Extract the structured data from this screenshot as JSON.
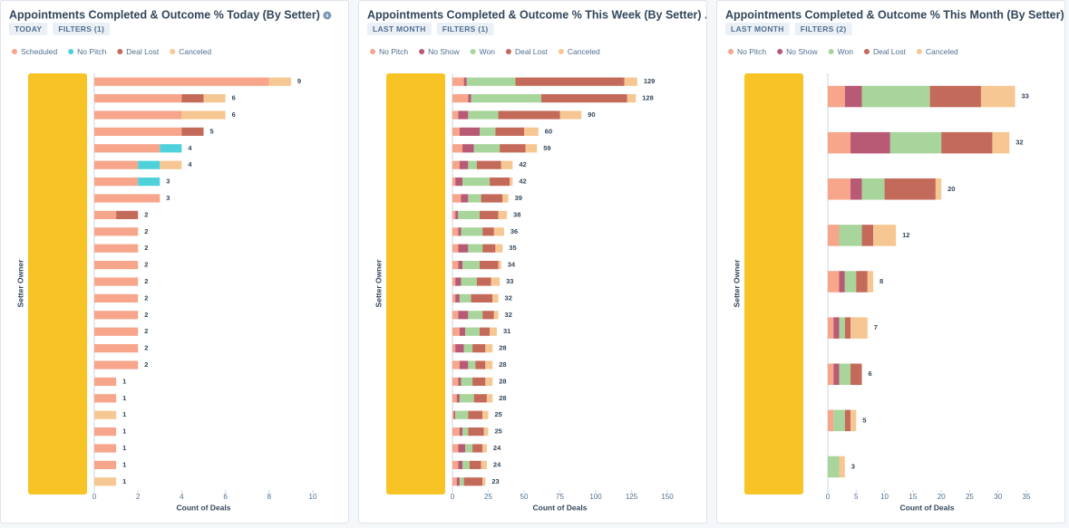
{
  "chart_data": [
    {
      "type": "bar",
      "orientation": "horizontal",
      "stacked": true,
      "title": "Appointments Completed & Outcome % Today (By Setter)",
      "filters": [
        "TODAY",
        "FILTERS (1)"
      ],
      "xlabel": "Count of Deals",
      "ylabel": "Setter Owner",
      "xlim": [
        0,
        10
      ],
      "xticks": [
        0,
        2,
        4,
        6,
        8,
        10
      ],
      "categories": [
        null,
        null,
        null,
        null,
        null,
        null,
        null,
        null,
        null,
        null,
        null,
        null,
        null,
        null,
        null,
        null,
        null,
        null,
        null,
        null,
        null,
        null,
        null,
        null,
        null
      ],
      "totals": [
        9,
        6,
        6,
        5,
        4,
        4,
        3,
        3,
        2,
        2,
        2,
        2,
        2,
        2,
        2,
        2,
        2,
        2,
        1,
        1,
        1,
        1,
        1,
        1,
        1
      ],
      "series": [
        {
          "name": "Scheduled",
          "color": "#f7a58b",
          "values": [
            8,
            4,
            4,
            4,
            3,
            2,
            2,
            3,
            1,
            2,
            2,
            2,
            2,
            2,
            2,
            2,
            2,
            2,
            1,
            1,
            0,
            1,
            1,
            1,
            0
          ]
        },
        {
          "name": "No Pitch",
          "color": "#4fd1db",
          "values": [
            0,
            0,
            0,
            0,
            1,
            1,
            1,
            0,
            0,
            0,
            0,
            0,
            0,
            0,
            0,
            0,
            0,
            0,
            0,
            0,
            0,
            0,
            0,
            0,
            0
          ]
        },
        {
          "name": "Deal Lost",
          "color": "#c46a5b",
          "values": [
            0,
            1,
            0,
            1,
            0,
            0,
            0,
            0,
            1,
            0,
            0,
            0,
            0,
            0,
            0,
            0,
            0,
            0,
            0,
            0,
            0,
            0,
            0,
            0,
            0
          ]
        },
        {
          "name": "Canceled",
          "color": "#f6c792",
          "values": [
            1,
            1,
            2,
            0,
            0,
            1,
            0,
            0,
            0,
            0,
            0,
            0,
            0,
            0,
            0,
            0,
            0,
            0,
            0,
            0,
            1,
            0,
            0,
            0,
            1
          ]
        }
      ]
    },
    {
      "type": "bar",
      "orientation": "horizontal",
      "stacked": true,
      "title": "Appointments Completed & Outcome % This Week (By Setter) ...",
      "filters": [
        "LAST MONTH",
        "FILTERS (1)"
      ],
      "xlabel": "Count of Deals",
      "ylabel": "Setter Owner",
      "xlim": [
        0,
        150
      ],
      "xticks": [
        0,
        25,
        50,
        75,
        100,
        125,
        150
      ],
      "categories": [
        null,
        null,
        null,
        null,
        null,
        null,
        null,
        null,
        null,
        null,
        null,
        null,
        null,
        null,
        null,
        null,
        null,
        null,
        null,
        null,
        null,
        null,
        null,
        null,
        null
      ],
      "totals": [
        129,
        128,
        90,
        60,
        59,
        42,
        42,
        39,
        38,
        36,
        35,
        34,
        33,
        32,
        32,
        31,
        28,
        28,
        28,
        28,
        25,
        25,
        24,
        24,
        23
      ],
      "series": [
        {
          "name": "No Pitch",
          "color": "#f7a58b",
          "values": [
            8,
            11,
            4,
            5,
            7,
            5,
            2,
            6,
            2,
            4,
            4,
            4,
            2,
            2,
            4,
            5,
            2,
            5,
            4,
            3,
            1,
            5,
            4,
            4,
            3
          ]
        },
        {
          "name": "No Show",
          "color": "#b85a76",
          "values": [
            2,
            2,
            7,
            14,
            8,
            6,
            5,
            5,
            2,
            2,
            7,
            3,
            4,
            3,
            7,
            4,
            6,
            6,
            2,
            2,
            1,
            2,
            5,
            3,
            2
          ]
        },
        {
          "name": "Won",
          "color": "#a8d59b",
          "values": [
            34,
            49,
            21,
            11,
            18,
            6,
            19,
            9,
            15,
            15,
            10,
            12,
            11,
            8,
            10,
            10,
            6,
            5,
            8,
            10,
            9,
            4,
            5,
            5,
            3
          ]
        },
        {
          "name": "Deal Lost",
          "color": "#c46a5b",
          "values": [
            76,
            60,
            43,
            20,
            18,
            17,
            14,
            15,
            13,
            8,
            9,
            13,
            10,
            15,
            8,
            7,
            9,
            7,
            9,
            9,
            10,
            11,
            7,
            8,
            13
          ]
        },
        {
          "name": "Canceled",
          "color": "#f6c792",
          "values": [
            9,
            6,
            15,
            10,
            8,
            8,
            2,
            4,
            6,
            7,
            5,
            2,
            6,
            4,
            3,
            5,
            5,
            5,
            5,
            4,
            4,
            3,
            3,
            4,
            2
          ]
        }
      ]
    },
    {
      "type": "bar",
      "orientation": "horizontal",
      "stacked": true,
      "title": "Appointments Completed & Outcome % This Month (By Setter)...",
      "filters": [
        "LAST MONTH",
        "FILTERS (2)"
      ],
      "xlabel": "Count of Deals",
      "ylabel": "Setter Owner",
      "xlim": [
        0,
        35
      ],
      "xticks": [
        0,
        5,
        10,
        15,
        20,
        25,
        30,
        35
      ],
      "categories": [
        null,
        null,
        null,
        null,
        null,
        null,
        null,
        null,
        null
      ],
      "totals": [
        33,
        32,
        20,
        12,
        8,
        7,
        6,
        5,
        3
      ],
      "series": [
        {
          "name": "No Pitch",
          "color": "#f7a58b",
          "values": [
            3,
            4,
            4,
            2,
            2,
            1,
            1,
            1,
            0
          ]
        },
        {
          "name": "No Show",
          "color": "#b85a76",
          "values": [
            3,
            7,
            2,
            0,
            1,
            1,
            1,
            0,
            0
          ]
        },
        {
          "name": "Won",
          "color": "#a8d59b",
          "values": [
            12,
            9,
            4,
            4,
            2,
            1,
            2,
            2,
            2
          ]
        },
        {
          "name": "Deal Lost",
          "color": "#c46a5b",
          "values": [
            9,
            9,
            9,
            2,
            2,
            1,
            2,
            1,
            0
          ]
        },
        {
          "name": "Canceled",
          "color": "#f6c792",
          "values": [
            6,
            3,
            1,
            4,
            1,
            3,
            0,
            1,
            1
          ]
        }
      ]
    }
  ]
}
